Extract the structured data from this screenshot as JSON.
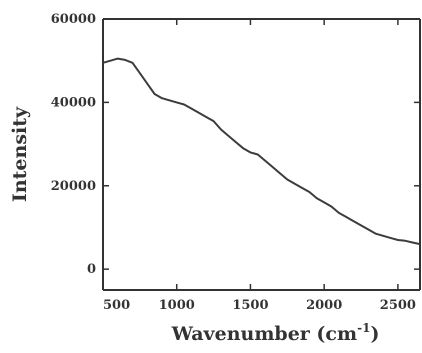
{
  "chart_data": {
    "type": "line",
    "title": "",
    "xlabel": "Wavenumber (cm",
    "xlabel_superscript": "-1",
    "xlabel_suffix": ")",
    "ylabel": "Intensity",
    "xlim": [
      500,
      2650
    ],
    "ylim": [
      -5000,
      60000
    ],
    "xticks": [
      500,
      1000,
      1500,
      2000,
      2500
    ],
    "yticks": [
      0,
      20000,
      40000,
      60000
    ],
    "xtick_labels": [
      "500",
      "1000",
      "1500",
      "2000",
      "2500"
    ],
    "ytick_labels": [
      "0",
      "20000",
      "40000",
      "60000"
    ],
    "grid": false,
    "line_color": "#3c3c3c",
    "series": [
      {
        "x": [
          500,
          550,
          600,
          650,
          700,
          750,
          800,
          850,
          900,
          950,
          1000,
          1050,
          1100,
          1150,
          1200,
          1250,
          1300,
          1350,
          1400,
          1450,
          1500,
          1550,
          1600,
          1650,
          1700,
          1750,
          1800,
          1850,
          1900,
          1950,
          2000,
          2050,
          2100,
          2150,
          2200,
          2250,
          2300,
          2350,
          2400,
          2450,
          2500,
          2550,
          2600,
          2650
        ],
        "y": [
          49500,
          50000,
          50500,
          50200,
          49500,
          47000,
          44500,
          42000,
          41000,
          40500,
          40000,
          39500,
          38500,
          37500,
          36500,
          35500,
          33500,
          32000,
          30500,
          29000,
          28000,
          27500,
          26000,
          24500,
          23000,
          21500,
          20500,
          19500,
          18500,
          17000,
          16000,
          15000,
          13500,
          12500,
          11500,
          10500,
          9500,
          8500,
          8000,
          7500,
          7000,
          6800,
          6400,
          6000
        ]
      }
    ]
  }
}
